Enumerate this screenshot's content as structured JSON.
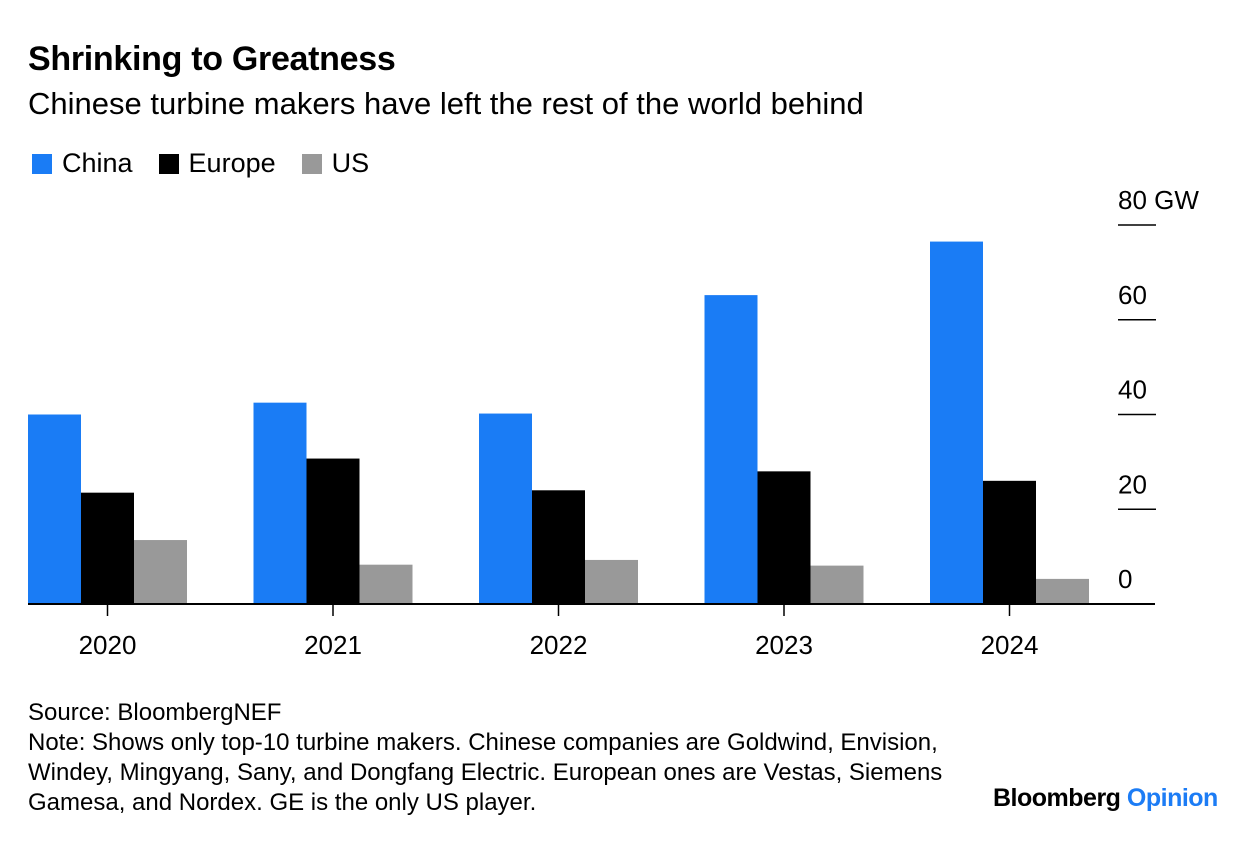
{
  "header": {
    "title": "Shrinking to Greatness",
    "subtitle": "Chinese turbine makers have left the rest of the world behind"
  },
  "colors": {
    "China": "#1a7cf5",
    "Europe": "#000000",
    "US": "#999999"
  },
  "chart_data": {
    "type": "bar",
    "categories": [
      "2020",
      "2021",
      "2022",
      "2023",
      "2024"
    ],
    "series": [
      {
        "name": "China",
        "values": [
          40,
          42.5,
          40.2,
          65.2,
          76.5
        ]
      },
      {
        "name": "Europe",
        "values": [
          23.5,
          30.7,
          24,
          28,
          26
        ]
      },
      {
        "name": "US",
        "values": [
          13.5,
          8.3,
          9.3,
          8.1,
          5.3
        ]
      }
    ],
    "ylim": [
      0,
      80
    ],
    "yticks": [
      {
        "value": 0,
        "label": "0"
      },
      {
        "value": 20,
        "label": "20"
      },
      {
        "value": 40,
        "label": "40"
      },
      {
        "value": 60,
        "label": "60"
      },
      {
        "value": 80,
        "label": "80 GW"
      }
    ],
    "legend": "top-left"
  },
  "footer": {
    "source": "Source: BloombergNEF",
    "note": "Note: Shows only top-10 turbine makers. Chinese companies are Goldwind, Envision, Windey, Mingyang, Sany, and Dongfang Electric. European ones are Vestas, Siemens Gamesa, and Nordex. GE is the only US player."
  },
  "brand": {
    "name": "Bloomberg",
    "suffix": "Opinion"
  }
}
